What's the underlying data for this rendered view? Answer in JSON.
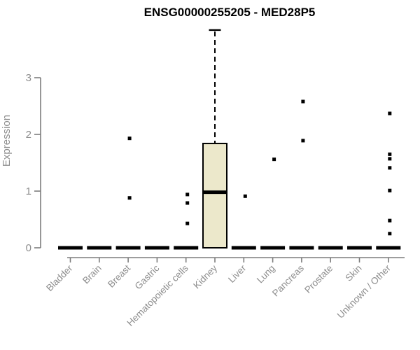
{
  "chart_data": {
    "type": "boxplot",
    "title": "ENSG00000255205 - MED28P5",
    "xlabel": "",
    "ylabel": "Expression",
    "yticks": [
      0,
      1,
      2,
      3
    ],
    "ylim": [
      0,
      3.9
    ],
    "grid": false,
    "legend": "none",
    "categories": [
      "Bladder",
      "Brain",
      "Breast",
      "Gastric",
      "Hematopoietic cells",
      "Kidney",
      "Liver",
      "Lung",
      "Pancreas",
      "Prostate",
      "Skin",
      "Unknown / Other"
    ],
    "series": [
      {
        "category": "Bladder",
        "whisker_low": 0,
        "q1": 0,
        "median": 0,
        "q3": 0,
        "whisker_high": 0,
        "outliers": []
      },
      {
        "category": "Brain",
        "whisker_low": 0,
        "q1": 0,
        "median": 0,
        "q3": 0,
        "whisker_high": 0,
        "outliers": []
      },
      {
        "category": "Breast",
        "whisker_low": 0,
        "q1": 0,
        "median": 0,
        "q3": 0,
        "whisker_high": 0,
        "outliers": [
          1.93,
          0.88
        ]
      },
      {
        "category": "Gastric",
        "whisker_low": 0,
        "q1": 0,
        "median": 0,
        "q3": 0,
        "whisker_high": 0,
        "outliers": []
      },
      {
        "category": "Hematopoietic cells",
        "whisker_low": 0,
        "q1": 0,
        "median": 0,
        "q3": 0,
        "whisker_high": 0,
        "outliers": [
          0.94,
          0.79,
          0.43
        ]
      },
      {
        "category": "Kidney",
        "whisker_low": 0,
        "q1": 0,
        "median": 0.98,
        "q3": 1.84,
        "whisker_high": 3.84,
        "outliers": []
      },
      {
        "category": "Liver",
        "whisker_low": 0,
        "q1": 0,
        "median": 0,
        "q3": 0,
        "whisker_high": 0,
        "outliers": [
          0.91
        ]
      },
      {
        "category": "Lung",
        "whisker_low": 0,
        "q1": 0,
        "median": 0,
        "q3": 0,
        "whisker_high": 0,
        "outliers": [
          1.56
        ]
      },
      {
        "category": "Pancreas",
        "whisker_low": 0,
        "q1": 0,
        "median": 0,
        "q3": 0,
        "whisker_high": 0,
        "outliers": [
          2.58,
          1.89
        ]
      },
      {
        "category": "Prostate",
        "whisker_low": 0,
        "q1": 0,
        "median": 0,
        "q3": 0,
        "whisker_high": 0,
        "outliers": []
      },
      {
        "category": "Skin",
        "whisker_low": 0,
        "q1": 0,
        "median": 0,
        "q3": 0,
        "whisker_high": 0,
        "outliers": []
      },
      {
        "category": "Unknown / Other",
        "whisker_low": 0,
        "q1": 0,
        "median": 0,
        "q3": 0,
        "whisker_high": 0,
        "outliers": [
          2.37,
          1.65,
          1.57,
          1.41,
          1.01,
          0.48,
          0.25
        ]
      }
    ],
    "colors": {
      "box_fill": "#ece8cb",
      "box_border": "#000000",
      "median": "#000000",
      "outlier": "#000000",
      "axis_line": "#7d7d7d",
      "axis_text": "#8d8d8d",
      "title_text": "#000000"
    }
  }
}
